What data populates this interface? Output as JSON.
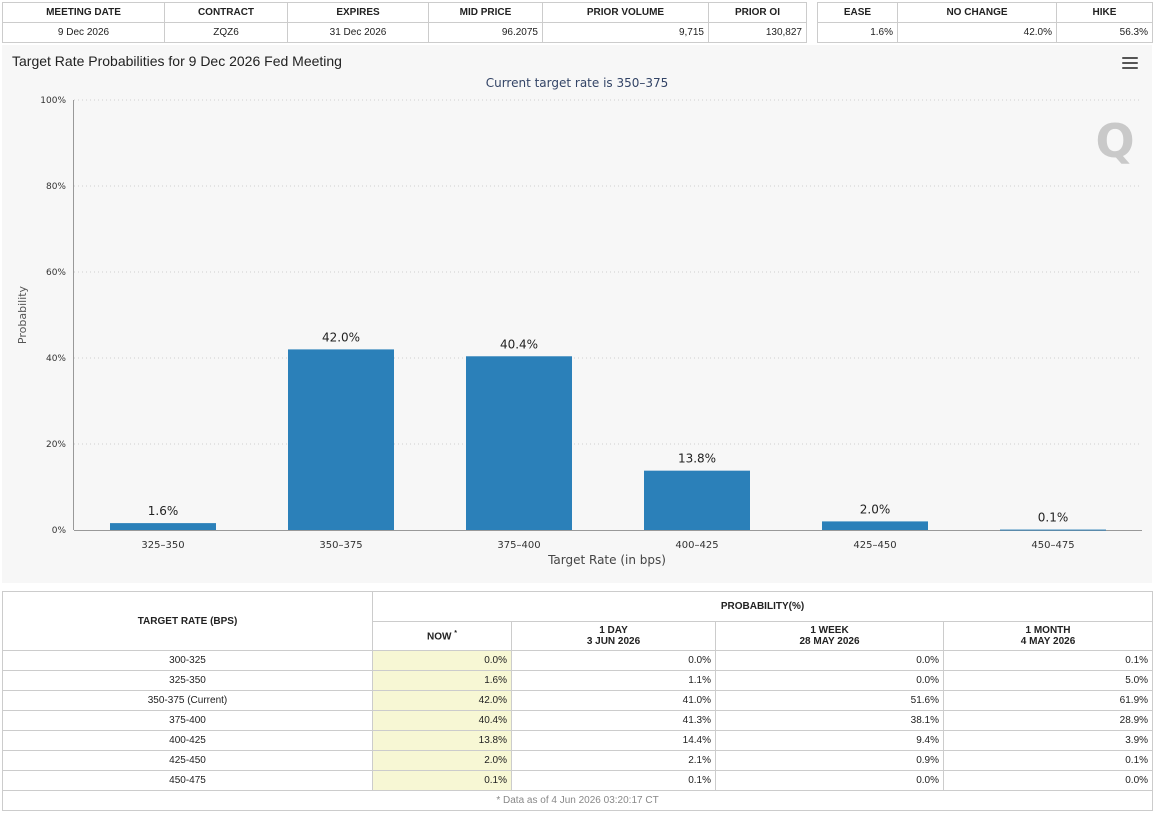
{
  "contract_table": {
    "headers": [
      "MEETING DATE",
      "CONTRACT",
      "EXPIRES",
      "MID PRICE",
      "PRIOR VOLUME",
      "PRIOR OI"
    ],
    "row": {
      "meeting_date": "9 Dec 2026",
      "contract": "ZQZ6",
      "expires": "31 Dec 2026",
      "mid_price": "96.2075",
      "prior_volume": "9,715",
      "prior_oi": "130,827"
    }
  },
  "summary_table": {
    "headers": [
      "EASE",
      "NO CHANGE",
      "HIKE"
    ],
    "row": {
      "ease": "1.6%",
      "no_change": "42.0%",
      "hike": "56.3%"
    }
  },
  "chart_data": {
    "type": "bar",
    "title": "Target Rate Probabilities for 9 Dec 2026 Fed Meeting",
    "subtitle": "Current target rate is 350–375",
    "xlabel": "Target Rate (in bps)",
    "ylabel": "Probability",
    "categories": [
      "325–350",
      "350–375",
      "375–400",
      "400–425",
      "425–450",
      "450–475"
    ],
    "values": [
      1.6,
      42.0,
      40.4,
      13.8,
      2.0,
      0.1
    ],
    "data_labels": [
      "1.6%",
      "42.0%",
      "40.4%",
      "13.8%",
      "2.0%",
      "0.1%"
    ],
    "ylim": [
      0,
      100
    ],
    "yticks": [
      0,
      20,
      40,
      60,
      80,
      100
    ],
    "ytick_labels": [
      "0%",
      "20%",
      "40%",
      "60%",
      "80%",
      "100%"
    ],
    "grid": true,
    "bar_color": "#2b80b9",
    "watermark": "Q"
  },
  "probability_table": {
    "col_target": "TARGET RATE (BPS)",
    "group_header": "PROBABILITY(%)",
    "col_now": "NOW",
    "now_marker": "*",
    "col_day": {
      "line1": "1 DAY",
      "line2": "3 JUN 2026"
    },
    "col_week": {
      "line1": "1 WEEK",
      "line2": "28 MAY 2026"
    },
    "col_month": {
      "line1": "1 MONTH",
      "line2": "4 MAY 2026"
    },
    "rows": [
      {
        "rate": "300-325",
        "now": "0.0%",
        "day": "0.0%",
        "week": "0.0%",
        "month": "0.1%"
      },
      {
        "rate": "325-350",
        "now": "1.6%",
        "day": "1.1%",
        "week": "0.0%",
        "month": "5.0%"
      },
      {
        "rate": "350-375 (Current)",
        "now": "42.0%",
        "day": "41.0%",
        "week": "51.6%",
        "month": "61.9%"
      },
      {
        "rate": "375-400",
        "now": "40.4%",
        "day": "41.3%",
        "week": "38.1%",
        "month": "28.9%"
      },
      {
        "rate": "400-425",
        "now": "13.8%",
        "day": "14.4%",
        "week": "9.4%",
        "month": "3.9%"
      },
      {
        "rate": "425-450",
        "now": "2.0%",
        "day": "2.1%",
        "week": "0.9%",
        "month": "0.1%"
      },
      {
        "rate": "450-475",
        "now": "0.1%",
        "day": "0.1%",
        "week": "0.0%",
        "month": "0.0%"
      }
    ],
    "footnote": "* Data as of 4 Jun 2026 03:20:17 CT"
  }
}
